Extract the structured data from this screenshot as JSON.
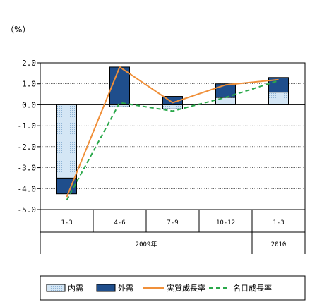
{
  "chart_data": {
    "type": "bar",
    "unit_label": "（%）",
    "categories": [
      "1-3",
      "4-6",
      "7-9",
      "10-12",
      "1-3"
    ],
    "year_groups": [
      {
        "label": "2009年",
        "span": [
          0,
          3
        ]
      },
      {
        "label": "2010",
        "span": [
          4,
          4
        ]
      }
    ],
    "ylim": [
      -5.0,
      2.0
    ],
    "yticks": [
      "2.0",
      "1.0",
      "0.0",
      "-1.0",
      "-2.0",
      "-3.0",
      "-4.0",
      "-5.0"
    ],
    "grid": true,
    "legend_position": "bottom",
    "series": [
      {
        "name": "内需",
        "kind": "bar",
        "color": "#cfe3f3",
        "values": [
          -3.5,
          -0.1,
          -0.2,
          0.35,
          0.6
        ]
      },
      {
        "name": "外需",
        "kind": "bar",
        "color": "#1f4e8c",
        "values": [
          -0.75,
          1.8,
          0.4,
          0.65,
          0.7
        ]
      },
      {
        "name": "実質成長率",
        "kind": "line",
        "color": "#f0903a",
        "values": [
          -4.4,
          1.8,
          0.1,
          0.95,
          1.2
        ]
      },
      {
        "name": "名目成長率",
        "kind": "line-dashed",
        "color": "#2aa84a",
        "values": [
          -4.55,
          0.1,
          -0.3,
          0.35,
          1.15
        ]
      }
    ]
  }
}
